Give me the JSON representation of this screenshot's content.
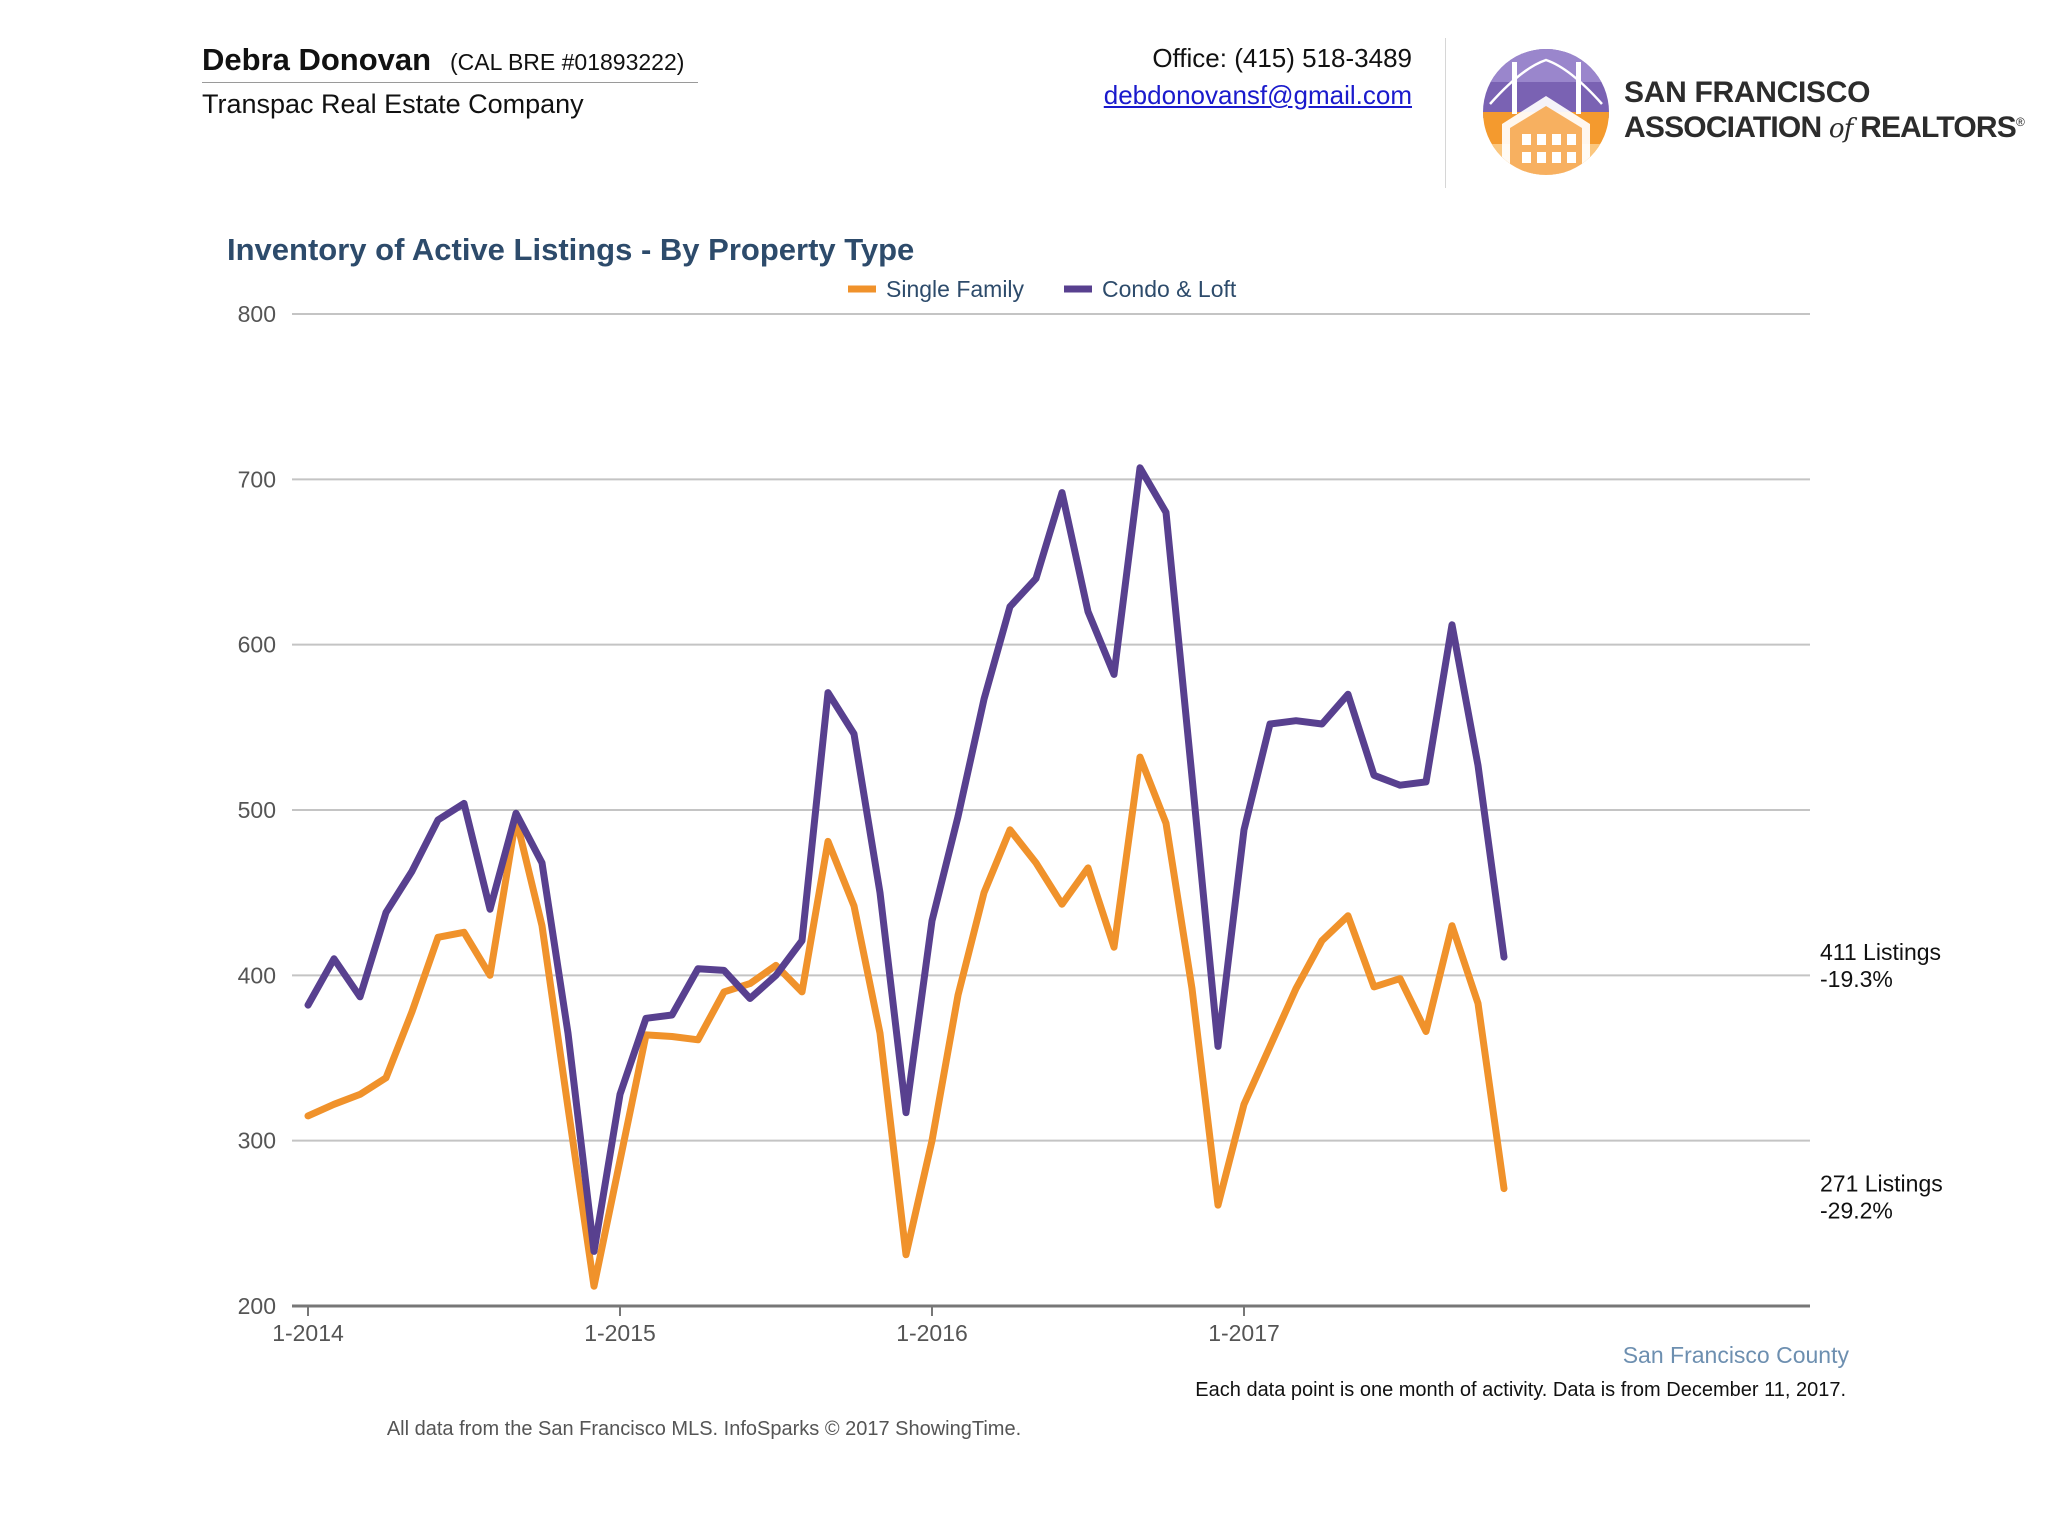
{
  "header": {
    "agent_name": "Debra Donovan",
    "agent_license": "(CAL BRE #01893222)",
    "company": "Transpac Real Estate Company",
    "office": "Office: (415) 518-3489",
    "email": "debdonovansf@gmail.com",
    "logo": {
      "line1": "SAN FRANCISCO",
      "line2_a": "ASSOCIATION",
      "line2_of": "of",
      "line2_b": "REALTORS",
      "registered": "®",
      "icon": "golden-gate-houses-emblem"
    }
  },
  "colors": {
    "single_family": "#f0922b",
    "condo_loft": "#58408f",
    "title": "#2d4b6b",
    "grid": "#c4c4c4",
    "axis": "#777777"
  },
  "chart_data": {
    "type": "line",
    "title": "Inventory of Active Listings - By Property Type",
    "xlabel": "",
    "ylabel": "",
    "ylim": [
      200,
      800
    ],
    "yticks": [
      "200",
      "300",
      "400",
      "500",
      "600",
      "700",
      "800"
    ],
    "xticks": [
      {
        "index": 0,
        "label": "1-2014"
      },
      {
        "index": 12,
        "label": "1-2015"
      },
      {
        "index": 24,
        "label": "1-2016"
      },
      {
        "index": 36,
        "label": "1-2017"
      }
    ],
    "grid": true,
    "legend_position": "top-center",
    "x": [
      "1-2014",
      "2-2014",
      "3-2014",
      "4-2014",
      "5-2014",
      "6-2014",
      "7-2014",
      "8-2014",
      "9-2014",
      "10-2014",
      "11-2014",
      "12-2014",
      "1-2015",
      "2-2015",
      "3-2015",
      "4-2015",
      "5-2015",
      "6-2015",
      "7-2015",
      "8-2015",
      "9-2015",
      "10-2015",
      "11-2015",
      "12-2015",
      "1-2016",
      "2-2016",
      "3-2016",
      "4-2016",
      "5-2016",
      "6-2016",
      "7-2016",
      "8-2016",
      "9-2016",
      "10-2016",
      "11-2016",
      "12-2016",
      "1-2017",
      "2-2017",
      "3-2017",
      "4-2017",
      "5-2017",
      "6-2017",
      "7-2017",
      "8-2017",
      "9-2017",
      "10-2017",
      "11-2017"
    ],
    "series": [
      {
        "name": "Single Family",
        "color": "#f0922b",
        "values": [
          315,
          322,
          328,
          338,
          378,
          423,
          426,
          400,
          495,
          430,
          320,
          212,
          288,
          364,
          363,
          361,
          390,
          395,
          406,
          390,
          481,
          442,
          365,
          231,
          300,
          388,
          450,
          488,
          468,
          443,
          465,
          417,
          532,
          492,
          392,
          261,
          322,
          357,
          392,
          421,
          436,
          393,
          398,
          366,
          430,
          383,
          271
        ],
        "end_label": "271 Listings",
        "end_change": "-29.2%"
      },
      {
        "name": "Condo & Loft",
        "color": "#58408f",
        "values": [
          382,
          410,
          387,
          438,
          463,
          494,
          504,
          440,
          498,
          468,
          365,
          233,
          328,
          374,
          376,
          404,
          403,
          386,
          400,
          421,
          571,
          546,
          450,
          317,
          433,
          496,
          567,
          623,
          640,
          692,
          620,
          582,
          707,
          680,
          520,
          357,
          488,
          552,
          554,
          552,
          570,
          521,
          515,
          517,
          612,
          527,
          411
        ],
        "end_label": "411 Listings",
        "end_change": "-19.3%"
      }
    ]
  },
  "footer": {
    "region": "San Francisco County",
    "note": "Each data point is one month of activity. Data is from December 11, 2017.",
    "source": "All data from the San Francisco MLS. InfoSparks © 2017 ShowingTime."
  }
}
